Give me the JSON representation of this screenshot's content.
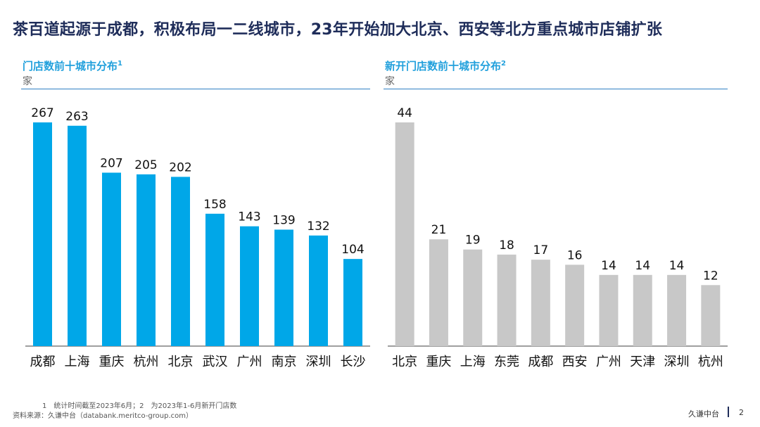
{
  "title": "茶百道起源于成都，积极布局一二线城市，23年开始加大北京、西安等北方重点城市店铺扩张",
  "chart_data": [
    {
      "type": "bar",
      "title": "门店数前十城市分布",
      "title_sup": "1",
      "unit": "家",
      "color": "#00a7e8",
      "categories": [
        "成都",
        "上海",
        "重庆",
        "杭州",
        "北京",
        "武汉",
        "广州",
        "南京",
        "深圳",
        "长沙"
      ],
      "values": [
        267,
        263,
        207,
        205,
        202,
        158,
        143,
        139,
        132,
        104
      ],
      "ylim": [
        0,
        267
      ]
    },
    {
      "type": "bar",
      "title": "新开门店数前十城市分布",
      "title_sup": "2",
      "unit": "家",
      "color": "#c8c8c8",
      "categories": [
        "北京",
        "重庆",
        "上海",
        "东莞",
        "成都",
        "西安",
        "广州",
        "天津",
        "深圳",
        "杭州"
      ],
      "values": [
        44,
        21,
        19,
        18,
        17,
        16,
        14,
        14,
        14,
        12
      ],
      "ylim": [
        0,
        44
      ]
    }
  ],
  "footnote": "1　统计时间截至2023年6月；2　为2023年1-6月新开门店数",
  "source": "资料来源：久谦中台（databank.meritco-group.com）",
  "brand": "久谦中台",
  "page_number": "2"
}
